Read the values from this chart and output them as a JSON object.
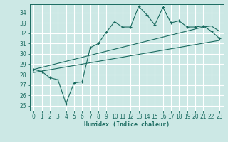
{
  "xlabel": "Humidex (Indice chaleur)",
  "bg_color": "#cce8e5",
  "line_color": "#1a6b60",
  "grid_color": "#ffffff",
  "xlim": [
    -0.5,
    23.5
  ],
  "ylim": [
    24.5,
    34.8
  ],
  "xticks": [
    0,
    1,
    2,
    3,
    4,
    5,
    6,
    7,
    8,
    9,
    10,
    11,
    12,
    13,
    14,
    15,
    16,
    17,
    18,
    19,
    20,
    21,
    22,
    23
  ],
  "yticks": [
    25,
    26,
    27,
    28,
    29,
    30,
    31,
    32,
    33,
    34
  ],
  "line1_x": [
    0,
    1,
    2,
    3,
    4,
    5,
    6,
    7,
    8,
    9,
    10,
    11,
    12,
    13,
    14,
    15,
    16,
    17,
    18,
    19,
    20,
    21,
    22,
    23
  ],
  "line1_y": [
    28.5,
    28.3,
    27.7,
    27.5,
    25.2,
    27.2,
    27.3,
    30.6,
    31.0,
    32.1,
    33.1,
    32.6,
    32.6,
    34.6,
    33.8,
    32.8,
    34.5,
    33.0,
    33.2,
    32.6,
    32.6,
    32.7,
    32.2,
    31.5
  ],
  "line2_x": [
    0,
    21,
    22,
    23
  ],
  "line2_y": [
    28.5,
    32.6,
    32.7,
    32.2
  ],
  "line3_x": [
    0,
    23
  ],
  "line3_y": [
    28.2,
    31.3
  ],
  "marker": "+"
}
